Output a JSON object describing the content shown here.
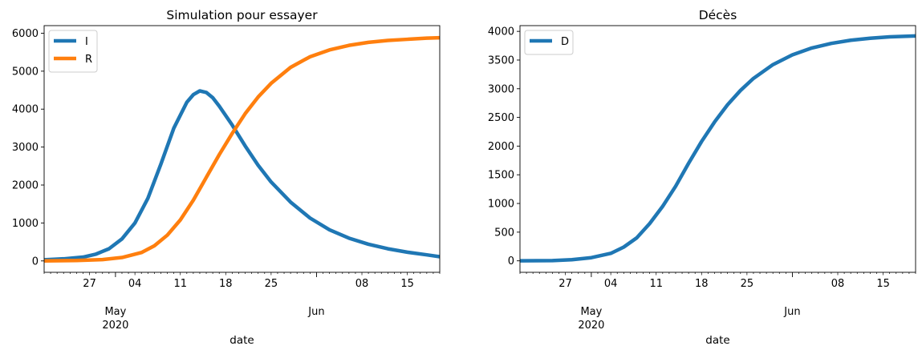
{
  "chart_data": [
    {
      "type": "line",
      "title": "Simulation pour essayer",
      "xlabel": "date",
      "ylabel": "",
      "x_range": [
        "2020-04-20",
        "2020-06-20"
      ],
      "ylim": [
        -300,
        6200
      ],
      "y_ticks": [
        0,
        1000,
        2000,
        3000,
        4000,
        5000,
        6000
      ],
      "x_minor_tick_labels": [
        {
          "date": "2020-04-27",
          "label": "27"
        },
        {
          "date": "2020-05-04",
          "label": "04"
        },
        {
          "date": "2020-05-11",
          "label": "11"
        },
        {
          "date": "2020-05-18",
          "label": "18"
        },
        {
          "date": "2020-05-25",
          "label": "25"
        },
        {
          "date": "2020-06-08",
          "label": "08"
        },
        {
          "date": "2020-06-15",
          "label": "15"
        }
      ],
      "x_major_tick_labels": [
        {
          "date": "2020-05-01",
          "label": "May",
          "sublabel": "2020"
        },
        {
          "date": "2020-06-01",
          "label": "Jun",
          "sublabel": ""
        }
      ],
      "legend": {
        "position": "top-left"
      },
      "series": [
        {
          "name": "I",
          "color": "#1f77b4",
          "x": [
            "2020-04-20",
            "2020-04-23",
            "2020-04-26",
            "2020-04-28",
            "2020-04-30",
            "2020-05-02",
            "2020-05-04",
            "2020-05-06",
            "2020-05-08",
            "2020-05-10",
            "2020-05-12",
            "2020-05-13",
            "2020-05-14",
            "2020-05-15",
            "2020-05-16",
            "2020-05-17",
            "2020-05-19",
            "2020-05-21",
            "2020-05-23",
            "2020-05-25",
            "2020-05-28",
            "2020-05-31",
            "2020-06-03",
            "2020-06-06",
            "2020-06-09",
            "2020-06-12",
            "2020-06-15",
            "2020-06-18",
            "2020-06-20"
          ],
          "y": [
            30,
            55,
            100,
            180,
            320,
            580,
            1000,
            1650,
            2550,
            3500,
            4180,
            4380,
            4480,
            4440,
            4300,
            4080,
            3580,
            3030,
            2520,
            2080,
            1550,
            1130,
            820,
            600,
            440,
            320,
            230,
            160,
            110
          ]
        },
        {
          "name": "R",
          "color": "#ff7f0e",
          "x": [
            "2020-04-20",
            "2020-04-25",
            "2020-04-29",
            "2020-05-02",
            "2020-05-05",
            "2020-05-07",
            "2020-05-09",
            "2020-05-11",
            "2020-05-13",
            "2020-05-15",
            "2020-05-17",
            "2020-05-19",
            "2020-05-21",
            "2020-05-23",
            "2020-05-25",
            "2020-05-28",
            "2020-05-31",
            "2020-06-03",
            "2020-06-06",
            "2020-06-09",
            "2020-06-12",
            "2020-06-15",
            "2020-06-18",
            "2020-06-20"
          ],
          "y": [
            0,
            10,
            35,
            90,
            220,
            400,
            680,
            1080,
            1600,
            2200,
            2800,
            3360,
            3880,
            4320,
            4680,
            5100,
            5380,
            5560,
            5680,
            5760,
            5810,
            5840,
            5870,
            5880
          ]
        }
      ]
    },
    {
      "type": "line",
      "title": "Décès",
      "xlabel": "date",
      "ylabel": "",
      "x_range": [
        "2020-04-20",
        "2020-06-20"
      ],
      "ylim": [
        -200,
        4100
      ],
      "y_ticks": [
        0,
        500,
        1000,
        1500,
        2000,
        2500,
        3000,
        3500,
        4000
      ],
      "x_minor_tick_labels": [
        {
          "date": "2020-04-27",
          "label": "27"
        },
        {
          "date": "2020-05-04",
          "label": "04"
        },
        {
          "date": "2020-05-11",
          "label": "11"
        },
        {
          "date": "2020-05-18",
          "label": "18"
        },
        {
          "date": "2020-05-25",
          "label": "25"
        },
        {
          "date": "2020-06-08",
          "label": "08"
        },
        {
          "date": "2020-06-15",
          "label": "15"
        }
      ],
      "x_major_tick_labels": [
        {
          "date": "2020-05-01",
          "label": "May",
          "sublabel": "2020"
        },
        {
          "date": "2020-06-01",
          "label": "Jun",
          "sublabel": ""
        }
      ],
      "legend": {
        "position": "top-left"
      },
      "series": [
        {
          "name": "D",
          "color": "#1f77b4",
          "x": [
            "2020-04-20",
            "2020-04-25",
            "2020-04-28",
            "2020-05-01",
            "2020-05-04",
            "2020-05-06",
            "2020-05-08",
            "2020-05-10",
            "2020-05-12",
            "2020-05-14",
            "2020-05-16",
            "2020-05-18",
            "2020-05-20",
            "2020-05-22",
            "2020-05-24",
            "2020-05-26",
            "2020-05-29",
            "2020-06-01",
            "2020-06-04",
            "2020-06-07",
            "2020-06-10",
            "2020-06-13",
            "2020-06-16",
            "2020-06-20"
          ],
          "y": [
            0,
            5,
            20,
            55,
            130,
            240,
            400,
            650,
            950,
            1300,
            1700,
            2080,
            2420,
            2720,
            2970,
            3180,
            3420,
            3590,
            3710,
            3790,
            3845,
            3880,
            3905,
            3920
          ]
        }
      ]
    }
  ]
}
